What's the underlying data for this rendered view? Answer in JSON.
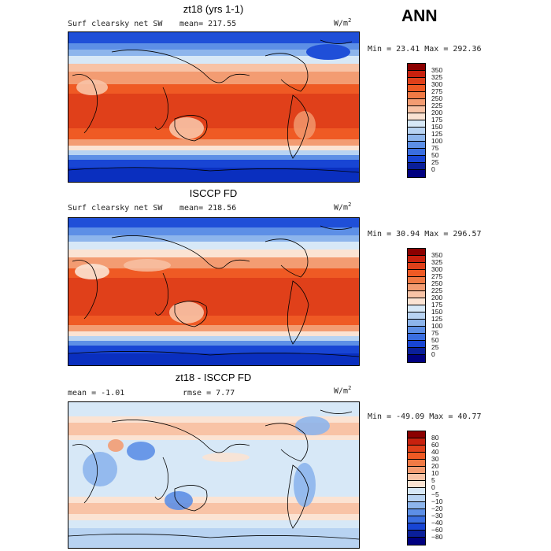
{
  "season": "ANN",
  "units_base": "W/m",
  "units_exp": "2",
  "panels": [
    {
      "title": "zt18 (yrs 1-1)",
      "left_label": "Surf clearsky net SW",
      "mid_label": "mean=  217.55",
      "minmax": "Min =   23.41  Max = 292.36",
      "cbar_ticks": [
        "350",
        "325",
        "300",
        "275",
        "250",
        "225",
        "200",
        "175",
        "150",
        "125",
        "100",
        "75",
        "50",
        "25",
        "0"
      ],
      "cbar_colors": [
        "#8b0000",
        "#c8210e",
        "#e0401a",
        "#ef5a24",
        "#f07a45",
        "#f39c72",
        "#f8c3a6",
        "#fbe3d3",
        "#d7e8f7",
        "#b8d3f2",
        "#8db5ec",
        "#5d8fe6",
        "#3a6ee0",
        "#1845d4",
        "#0a1f9a",
        "#000080"
      ]
    },
    {
      "title": "ISCCP FD",
      "left_label": "Surf clearsky net SW",
      "mid_label": "mean=  218.56",
      "minmax": "Min =   30.94  Max = 296.57",
      "cbar_ticks": [
        "350",
        "325",
        "300",
        "275",
        "250",
        "225",
        "200",
        "175",
        "150",
        "125",
        "100",
        "75",
        "50",
        "25",
        "0"
      ],
      "cbar_colors": [
        "#8b0000",
        "#c8210e",
        "#e0401a",
        "#ef5a24",
        "#f07a45",
        "#f39c72",
        "#f8c3a6",
        "#fbe3d3",
        "#d7e8f7",
        "#b8d3f2",
        "#8db5ec",
        "#5d8fe6",
        "#3a6ee0",
        "#1845d4",
        "#0a1f9a",
        "#000080"
      ]
    },
    {
      "title": "zt18 - ISCCP FD",
      "left_label": "mean =    -1.01",
      "mid_label": "rmse =    7.77",
      "minmax": "Min = -49.09  Max =   40.77",
      "cbar_ticks": [
        "80",
        "60",
        "40",
        "30",
        "20",
        "10",
        "5",
        "0",
        "−5",
        "−10",
        "−20",
        "−30",
        "−40",
        "−60",
        "−80"
      ],
      "cbar_colors": [
        "#8b0000",
        "#c8210e",
        "#e0401a",
        "#ef5a24",
        "#f07a45",
        "#f39c72",
        "#f8c3a6",
        "#fbe3d3",
        "#d7e8f7",
        "#b8d3f2",
        "#8db5ec",
        "#5d8fe6",
        "#3a6ee0",
        "#1845d4",
        "#0a1f9a",
        "#000080"
      ]
    }
  ]
}
